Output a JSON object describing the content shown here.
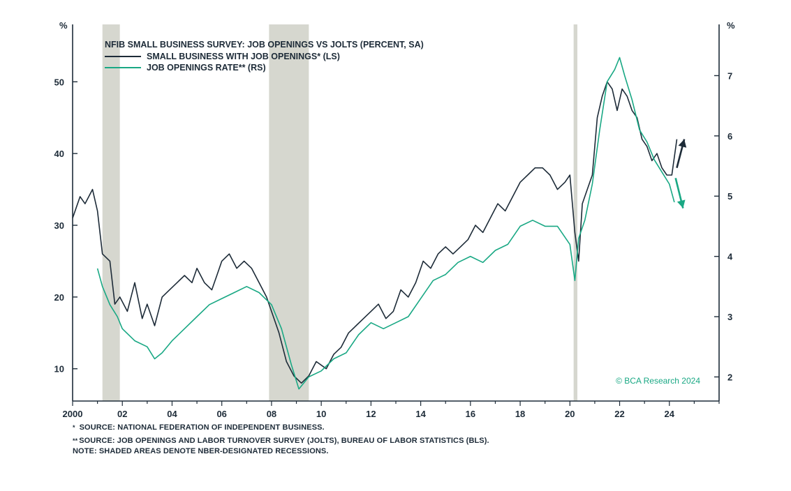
{
  "colors": {
    "small_business": "#1d2b38",
    "jolts": "#19a884",
    "recession": "#d6d7cf",
    "axis": "#1d2b38",
    "watermark": "#19a884"
  },
  "chart_data": {
    "type": "line",
    "title": "NFIB SMALL BUSINESS SURVEY: JOB OPENINGS VS JOLTS (PERCENT, SA)",
    "left_axis": {
      "unit": "%",
      "ylim": [
        5.5,
        58
      ],
      "ticks": [
        "10",
        "20",
        "30",
        "40",
        "50"
      ]
    },
    "right_axis": {
      "unit": "%",
      "ylim": [
        1.6,
        7.85
      ],
      "ticks": [
        "2",
        "3",
        "4",
        "5",
        "6",
        "7"
      ]
    },
    "x_axis": {
      "xlim": [
        2000.0,
        2026.0
      ],
      "tick_labels": [
        "2000",
        "02",
        "04",
        "06",
        "08",
        "10",
        "12",
        "14",
        "16",
        "18",
        "20",
        "22",
        "24"
      ],
      "tick_years": [
        2000,
        2002,
        2004,
        2006,
        2008,
        2010,
        2012,
        2014,
        2016,
        2018,
        2020,
        2022,
        2024
      ]
    },
    "recessions": [
      [
        2001.2,
        2001.9
      ],
      [
        2007.9,
        2009.5
      ],
      [
        2020.15,
        2020.3
      ]
    ],
    "series": [
      {
        "name": "SMALL BUSINESS WITH JOB OPENINGS* (LS)",
        "axis": "left",
        "x": [
          2000.0,
          2000.3,
          2000.5,
          2000.8,
          2001.0,
          2001.2,
          2001.5,
          2001.7,
          2001.9,
          2002.2,
          2002.5,
          2002.8,
          2003.0,
          2003.3,
          2003.6,
          2003.9,
          2004.2,
          2004.5,
          2004.8,
          2005.0,
          2005.3,
          2005.6,
          2005.8,
          2006.0,
          2006.3,
          2006.6,
          2006.9,
          2007.2,
          2007.5,
          2007.8,
          2008.0,
          2008.3,
          2008.6,
          2008.9,
          2009.2,
          2009.5,
          2009.8,
          2010.2,
          2010.5,
          2010.8,
          2011.1,
          2011.4,
          2011.7,
          2012.0,
          2012.3,
          2012.6,
          2012.9,
          2013.2,
          2013.5,
          2013.8,
          2014.1,
          2014.4,
          2014.7,
          2015.0,
          2015.3,
          2015.6,
          2015.9,
          2016.2,
          2016.5,
          2016.8,
          2017.1,
          2017.4,
          2017.7,
          2018.0,
          2018.3,
          2018.6,
          2018.9,
          2019.2,
          2019.5,
          2019.8,
          2020.0,
          2020.2,
          2020.35,
          2020.5,
          2020.7,
          2020.9,
          2021.1,
          2021.3,
          2021.5,
          2021.7,
          2021.9,
          2022.1,
          2022.3,
          2022.5,
          2022.7,
          2022.9,
          2023.1,
          2023.3,
          2023.5,
          2023.7,
          2023.9,
          2024.1,
          2024.3
        ],
        "values": [
          31,
          34,
          33,
          35,
          32,
          26,
          25,
          19,
          20,
          18,
          22,
          17,
          19,
          16,
          20,
          21,
          22,
          23,
          22,
          24,
          22,
          21,
          23,
          25,
          26,
          24,
          25,
          24,
          22,
          20,
          18,
          15,
          11,
          9,
          8,
          9,
          11,
          10,
          12,
          13,
          15,
          16,
          17,
          18,
          19,
          17,
          18,
          21,
          20,
          22,
          25,
          24,
          26,
          27,
          26,
          27,
          28,
          30,
          29,
          31,
          33,
          32,
          34,
          36,
          37,
          38,
          38,
          37,
          35,
          36,
          37,
          29,
          25,
          33,
          35,
          37,
          45,
          48,
          50,
          49,
          46,
          49,
          48,
          46,
          45,
          42,
          41,
          39,
          40,
          38,
          37,
          37,
          42
        ]
      },
      {
        "name": "JOB OPENINGS RATE** (RS)",
        "axis": "right",
        "x": [
          2001.0,
          2001.2,
          2001.5,
          2001.8,
          2002.0,
          2002.5,
          2003.0,
          2003.3,
          2003.6,
          2004.0,
          2004.5,
          2005.0,
          2005.5,
          2006.0,
          2006.5,
          2007.0,
          2007.5,
          2008.0,
          2008.4,
          2008.8,
          2009.1,
          2009.5,
          2010.0,
          2010.5,
          2011.0,
          2011.5,
          2012.0,
          2012.5,
          2013.0,
          2013.5,
          2014.0,
          2014.5,
          2015.0,
          2015.5,
          2016.0,
          2016.5,
          2017.0,
          2017.5,
          2018.0,
          2018.5,
          2019.0,
          2019.5,
          2020.0,
          2020.2,
          2020.35,
          2020.6,
          2020.9,
          2021.2,
          2021.5,
          2021.8,
          2022.0,
          2022.2,
          2022.5,
          2022.8,
          2023.1,
          2023.4,
          2023.7,
          2024.0,
          2024.2
        ],
        "values": [
          3.8,
          3.5,
          3.2,
          3.0,
          2.8,
          2.6,
          2.5,
          2.3,
          2.4,
          2.6,
          2.8,
          3.0,
          3.2,
          3.3,
          3.4,
          3.5,
          3.4,
          3.2,
          2.8,
          2.2,
          1.8,
          2.0,
          2.1,
          2.3,
          2.4,
          2.7,
          2.9,
          2.8,
          2.9,
          3.0,
          3.3,
          3.6,
          3.7,
          3.9,
          4.0,
          3.9,
          4.1,
          4.2,
          4.5,
          4.6,
          4.5,
          4.5,
          4.2,
          3.6,
          4.3,
          4.6,
          5.2,
          6.1,
          6.9,
          7.1,
          7.3,
          7.0,
          6.6,
          6.1,
          5.9,
          5.6,
          5.4,
          5.2,
          4.9
        ]
      }
    ],
    "arrows": [
      {
        "series": 0,
        "from": [
          2024.3,
          38
        ],
        "to": [
          2024.6,
          42
        ]
      },
      {
        "series": 1,
        "from": [
          2024.25,
          5.3
        ],
        "to": [
          2024.55,
          4.8
        ]
      }
    ]
  },
  "labels": {
    "left_unit": "%",
    "right_unit": "%",
    "title": "NFIB SMALL BUSINESS SURVEY: JOB OPENINGS VS JOLTS (PERCENT, SA)",
    "legend_small_business": "SMALL BUSINESS WITH JOB OPENINGS* (LS)",
    "legend_jolts": "JOB OPENINGS RATE** (RS)",
    "watermark": "© BCA Research 2024"
  },
  "footnotes": {
    "note1_mark": "*",
    "note1_text": "SOURCE: NATIONAL FEDERATION OF INDEPENDENT BUSINESS.",
    "note2_mark": "**",
    "note2_text": "SOURCE: JOB OPENINGS AND LABOR TURNOVER SURVEY (JOLTS), BUREAU OF LABOR STATISTICS (BLS).",
    "note3_text": "NOTE: SHADED AREAS DENOTE NBER-DESIGNATED RECESSIONS."
  }
}
